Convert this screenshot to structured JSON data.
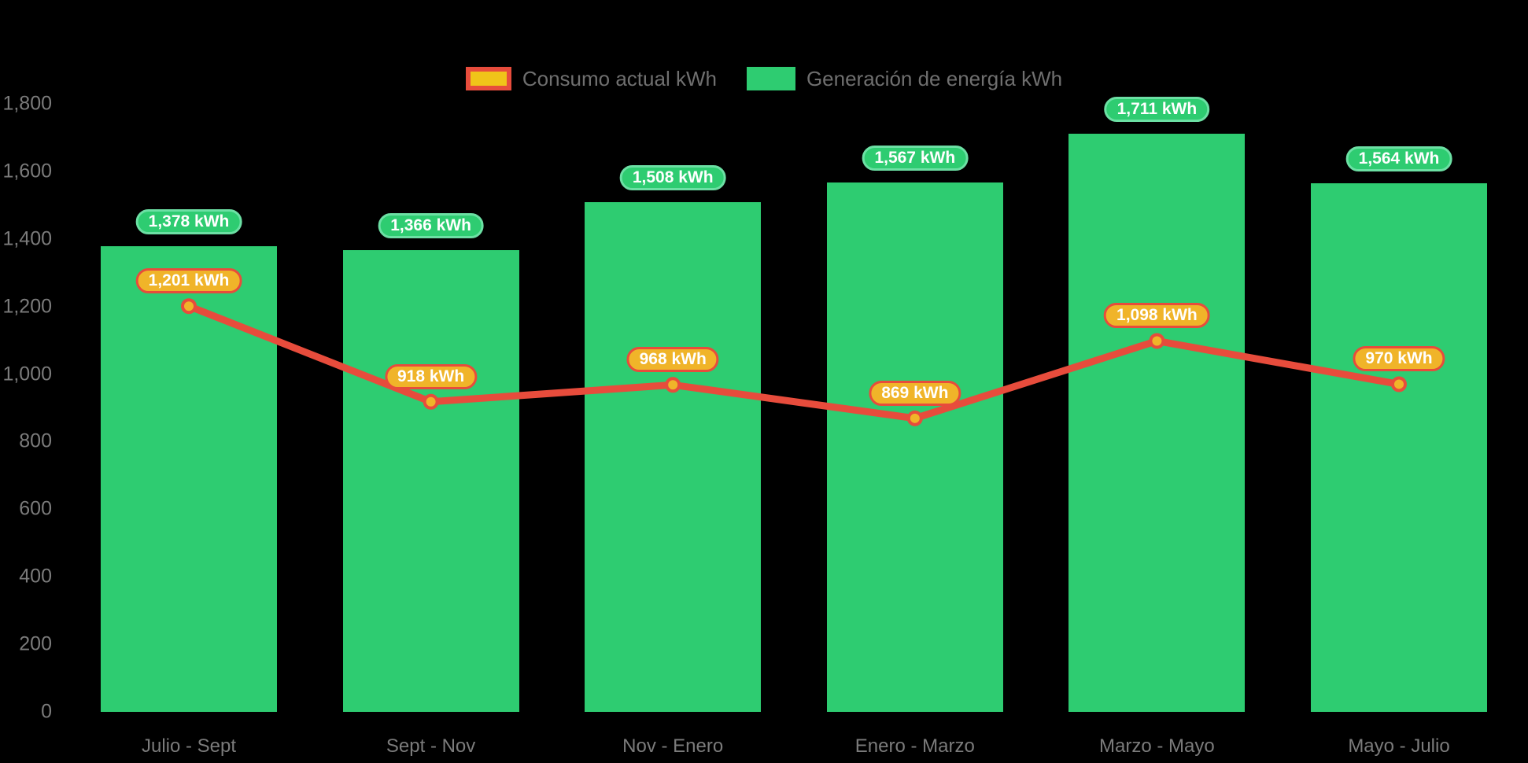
{
  "background_color": "#000000",
  "colors": {
    "bar_green": "#2ecc71",
    "green_badge_border": "#6ce0a4",
    "line_red": "#e74c3c",
    "marker_fill": "#f0b429",
    "orange_badge_fill": "#f0b429",
    "orange_badge_border": "#e74c3c",
    "legend_yellow": "#f0c419",
    "axis_text": "#7b7b7b",
    "legend_text": "#6f6f6f",
    "badge_text": "#ffffff"
  },
  "legend": {
    "items": [
      {
        "id": "consumption",
        "label": "Consumo actual kWh"
      },
      {
        "id": "generation",
        "label": "Generación de energía kWh"
      }
    ]
  },
  "chart_data": {
    "type": "bar+line",
    "categories": [
      "Julio - Sept",
      "Sept - Nov",
      "Nov - Enero",
      "Enero - Marzo",
      "Marzo - Mayo",
      "Mayo - Julio"
    ],
    "series": [
      {
        "name": "Generación de energía kWh",
        "type": "bar",
        "color": "#2ecc71",
        "values": [
          1378,
          1366,
          1508,
          1567,
          1711,
          1564
        ],
        "labels": [
          "1,378 kWh",
          "1,366 kWh",
          "1,508 kWh",
          "1,567 kWh",
          "1,711 kWh",
          "1,564 kWh"
        ]
      },
      {
        "name": "Consumo actual kWh",
        "type": "line",
        "color": "#e74c3c",
        "values": [
          1201,
          918,
          968,
          869,
          1098,
          970
        ],
        "labels": [
          "1,201 kWh",
          "918 kWh",
          "968 kWh",
          "869 kWh",
          "1,098 kWh",
          "970 kWh"
        ]
      }
    ],
    "ylim": [
      0,
      1800
    ],
    "yticks": [
      0,
      200,
      400,
      600,
      800,
      1000,
      1200,
      1400,
      1600,
      1800
    ],
    "ytick_labels": [
      "0",
      "200",
      "400",
      "600",
      "800",
      "1,000",
      "1,200",
      "1,400",
      "1,600",
      "1,800"
    ],
    "grid": false,
    "legend_position": "top-center"
  }
}
